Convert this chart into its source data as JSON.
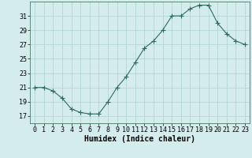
{
  "x": [
    0,
    1,
    2,
    3,
    4,
    5,
    6,
    7,
    8,
    9,
    10,
    11,
    12,
    13,
    14,
    15,
    16,
    17,
    18,
    19,
    20,
    21,
    22,
    23
  ],
  "y": [
    21.0,
    21.0,
    20.5,
    19.5,
    18.0,
    17.5,
    17.3,
    17.3,
    19.0,
    21.0,
    22.5,
    24.5,
    26.5,
    27.5,
    29.0,
    31.0,
    31.0,
    32.0,
    32.5,
    32.5,
    30.0,
    28.5,
    27.5,
    27.0
  ],
  "line_color": "#2e6b5e",
  "marker": "+",
  "marker_size": 4,
  "bg_color": "#d4ecec",
  "grid_color": "#aed0d0",
  "xlabel": "Humidex (Indice chaleur)",
  "xlabel_fontsize": 7,
  "tick_fontsize": 6,
  "ylim": [
    16,
    33
  ],
  "xlim": [
    -0.5,
    23.5
  ],
  "yticks": [
    17,
    19,
    21,
    23,
    25,
    27,
    29,
    31
  ],
  "xticks": [
    0,
    1,
    2,
    3,
    4,
    5,
    6,
    7,
    8,
    9,
    10,
    11,
    12,
    13,
    14,
    15,
    16,
    17,
    18,
    19,
    20,
    21,
    22,
    23
  ]
}
